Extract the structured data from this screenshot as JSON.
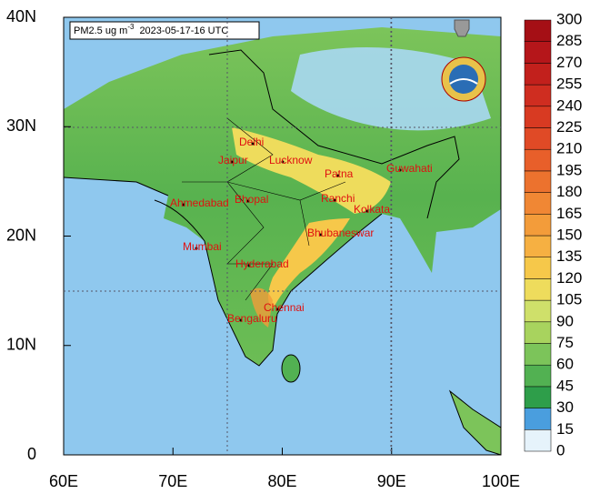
{
  "title": {
    "quantity": "PM2.5 ug m",
    "exponent": "-3",
    "time": "2023-05-17-16 UTC"
  },
  "map": {
    "xlim": [
      60,
      100
    ],
    "ylim": [
      0,
      40
    ],
    "xticks": [
      {
        "value": 60,
        "label": "60E"
      },
      {
        "value": 70,
        "label": "70E"
      },
      {
        "value": 80,
        "label": "80E"
      },
      {
        "value": 90,
        "label": "90E"
      },
      {
        "value": 100,
        "label": "100E"
      }
    ],
    "yticks": [
      0,
      {
        "value": 10,
        "label": "10N"
      },
      {
        "value": 20,
        "label": "20N"
      },
      {
        "value": 30,
        "label": "30N"
      },
      {
        "value": 40,
        "label": "40N"
      }
    ]
  },
  "cities": [
    "Delhi",
    "Jaipur",
    "Lucknow",
    "Patna",
    "Guwahati",
    "Ahmedabad",
    "Bhopal",
    "Ranchi",
    "Kolkata",
    "Bhubaneswar",
    "Mumbai",
    "Hyderabad",
    "Chennai",
    "Bengaluru"
  ],
  "colorbar": {
    "ticks": [
      0,
      15,
      30,
      45,
      60,
      75,
      90,
      105,
      120,
      135,
      150,
      165,
      180,
      195,
      210,
      225,
      240,
      255,
      270,
      285,
      300
    ],
    "colors": [
      "#e6f3fb",
      "#4a9ede",
      "#2e9e4a",
      "#52b152",
      "#7cc45a",
      "#a8d35e",
      "#cfe06a",
      "#eedc5c",
      "#f6c84a",
      "#f6b042",
      "#f39c3a",
      "#f08734",
      "#ec722e",
      "#e85f2a",
      "#e04a26",
      "#d83a22",
      "#cf2d20",
      "#c2201c",
      "#b5161a",
      "#a50f15"
    ]
  }
}
